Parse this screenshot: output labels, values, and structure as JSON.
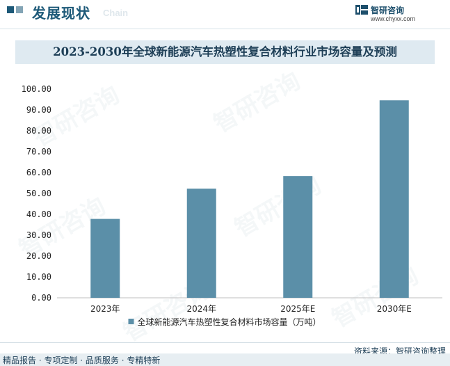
{
  "header": {
    "section_title": "发展现状",
    "section_title_en": "Chain",
    "brand_name": "智研咨询",
    "brand_url": "www.chyxx.com",
    "accent_color": "#1d5978"
  },
  "watermark": "智研咨询",
  "chart_data": {
    "type": "bar",
    "title": "2023-2030年全球新能源汽车热塑性复合材料行业市场容量及预测",
    "categories": [
      "2023年",
      "2024年",
      "2025年E",
      "2030年E"
    ],
    "series": [
      {
        "name": "全球新能源汽车热塑性复合材料市场容量（万吨）",
        "values": [
          37.8,
          52.3,
          58.3,
          94.6
        ],
        "color": "#5b8fa8"
      }
    ],
    "ylim": [
      0,
      100
    ],
    "yticks": [
      "0.00",
      "10.00",
      "20.00",
      "30.00",
      "40.00",
      "50.00",
      "60.00",
      "70.00",
      "80.00",
      "90.00",
      "100.00"
    ],
    "grid": false,
    "legend_position": "bottom"
  },
  "footer": {
    "source": "资料来源：智研咨询整理",
    "tagline": "精品报告 · 专项定制 · 品质服务 · 专精特新",
    "band_color": "#e7eef2"
  }
}
